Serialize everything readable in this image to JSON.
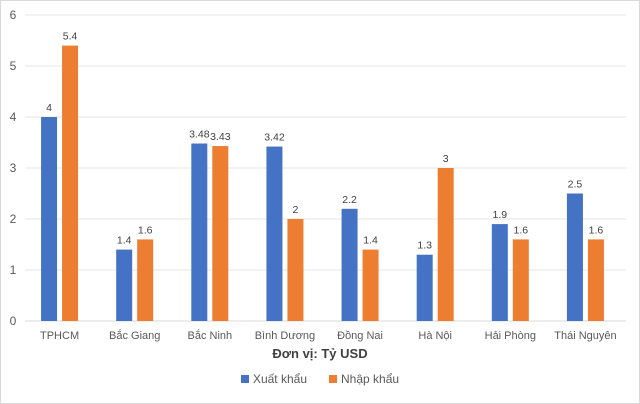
{
  "chart_data": {
    "type": "bar",
    "title": "",
    "xlabel": "Đơn vị: Tỷ USD",
    "ylabel": "",
    "ylim": [
      0,
      6
    ],
    "yticks": [
      "0",
      "1",
      "2",
      "3",
      "4",
      "5",
      "6"
    ],
    "grid": true,
    "legend_position": "bottom",
    "categories": [
      "TPHCM",
      "Bắc Giang",
      "Bắc Ninh",
      "Bình Dương",
      "Đồng Nai",
      "Hà Nội",
      "Hải Phòng",
      "Thái Nguyên"
    ],
    "series": [
      {
        "name": "Xuất khẩu",
        "color": "#4472C4",
        "values": [
          4,
          1.4,
          3.48,
          3.42,
          2.2,
          1.3,
          1.9,
          2.5
        ],
        "labels": [
          "4",
          "1.4",
          "3.48",
          "3.42",
          "2.2",
          "1.3",
          "1.9",
          "2.5"
        ]
      },
      {
        "name": "Nhập khẩu",
        "color": "#ED7D31",
        "values": [
          5.4,
          1.6,
          3.43,
          2,
          1.4,
          3,
          1.6,
          1.6
        ],
        "labels": [
          "5.4",
          "1.6",
          "3.43",
          "2",
          "1.4",
          "3",
          "1.6",
          "1.6"
        ]
      }
    ]
  }
}
